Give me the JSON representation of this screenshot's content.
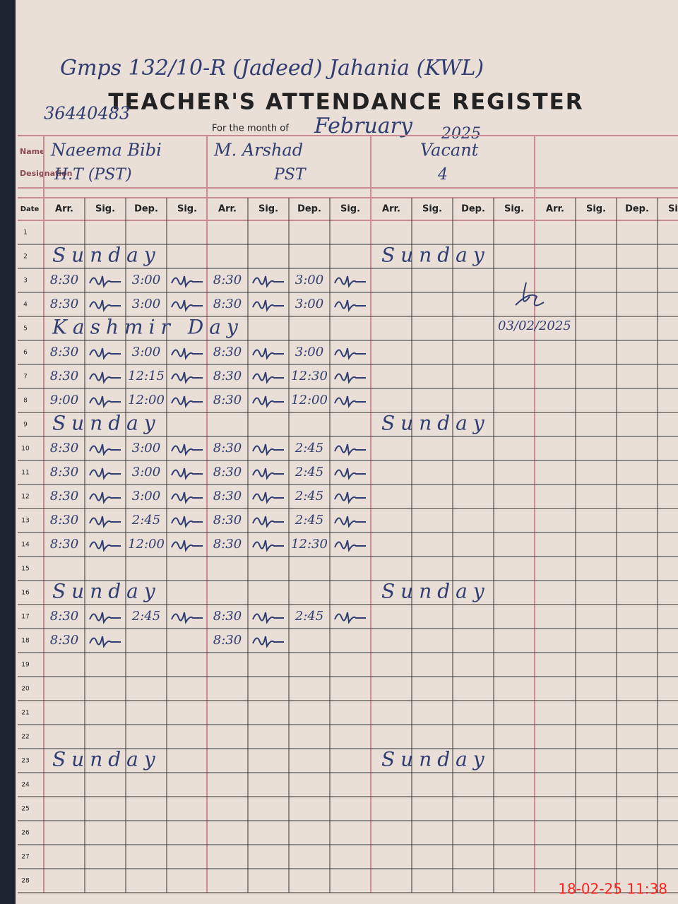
{
  "header": {
    "school": "Gmps 132/10-R (Jadeed) Jahania (KWL)",
    "title": "TEACHER'S ATTENDANCE REGISTER",
    "code": "36440483",
    "month_label": "For the month of",
    "month": "February",
    "year": "2025"
  },
  "field_labels": {
    "name": "Name",
    "designation": "Designation"
  },
  "teachers": [
    {
      "name": "Naeema Bibi",
      "designation": "H.T (PST)"
    },
    {
      "name": "M. Arshad",
      "designation": "PST"
    },
    {
      "name": "Vacant",
      "designation": "4"
    }
  ],
  "columns": [
    "Date",
    "Arr.",
    "Sig.",
    "Dep.",
    "Sig."
  ],
  "rows": [
    {
      "date": "1"
    },
    {
      "date": "2",
      "note": "Sunday",
      "note2": "Sunday"
    },
    {
      "date": "3",
      "t1": {
        "arr": "8:30",
        "dep": "3:00"
      },
      "t2": {
        "arr": "8:30",
        "dep": "3:00"
      }
    },
    {
      "date": "4",
      "t1": {
        "arr": "8:30",
        "dep": "3:00"
      },
      "t2": {
        "arr": "8:30",
        "dep": "3:00"
      }
    },
    {
      "date": "5",
      "note": "Kashmir Day"
    },
    {
      "date": "6",
      "t1": {
        "arr": "8:30",
        "dep": "3:00"
      },
      "t2": {
        "arr": "8:30",
        "dep": "3:00"
      }
    },
    {
      "date": "7",
      "t1": {
        "arr": "8:30",
        "dep": "12:15"
      },
      "t2": {
        "arr": "8:30",
        "dep": "12:30"
      }
    },
    {
      "date": "8",
      "t1": {
        "arr": "9:00",
        "dep": "12:00"
      },
      "t2": {
        "arr": "8:30",
        "dep": "12:00"
      }
    },
    {
      "date": "9",
      "note": "Sunday",
      "note2": "Sunday"
    },
    {
      "date": "10",
      "t1": {
        "arr": "8:30",
        "dep": "3:00"
      },
      "t2": {
        "arr": "8:30",
        "dep": "2:45"
      }
    },
    {
      "date": "11",
      "t1": {
        "arr": "8:30",
        "dep": "3:00"
      },
      "t2": {
        "arr": "8:30",
        "dep": "2:45"
      }
    },
    {
      "date": "12",
      "t1": {
        "arr": "8:30",
        "dep": "3:00"
      },
      "t2": {
        "arr": "8:30",
        "dep": "2:45"
      }
    },
    {
      "date": "13",
      "t1": {
        "arr": "8:30",
        "dep": "2:45"
      },
      "t2": {
        "arr": "8:30",
        "dep": "2:45"
      }
    },
    {
      "date": "14",
      "t1": {
        "arr": "8:30",
        "dep": "12:00"
      },
      "t2": {
        "arr": "8:30",
        "dep": "12:30"
      }
    },
    {
      "date": "15"
    },
    {
      "date": "16",
      "note": "Sunday",
      "note2": "Sunday"
    },
    {
      "date": "17",
      "t1": {
        "arr": "8:30",
        "dep": "2:45"
      },
      "t2": {
        "arr": "8:30",
        "dep": "2:45"
      }
    },
    {
      "date": "18",
      "t1": {
        "arr": "8:30"
      },
      "t2": {
        "arr": "8:30"
      }
    },
    {
      "date": "19"
    },
    {
      "date": "20"
    },
    {
      "date": "21"
    },
    {
      "date": "22"
    },
    {
      "date": "23",
      "note": "Sunday",
      "note2": "Sunday"
    },
    {
      "date": "24"
    },
    {
      "date": "25"
    },
    {
      "date": "26"
    },
    {
      "date": "27"
    },
    {
      "date": "28"
    }
  ],
  "stamp": "03/02/2025",
  "timestamp": "18-02-25 11:38"
}
